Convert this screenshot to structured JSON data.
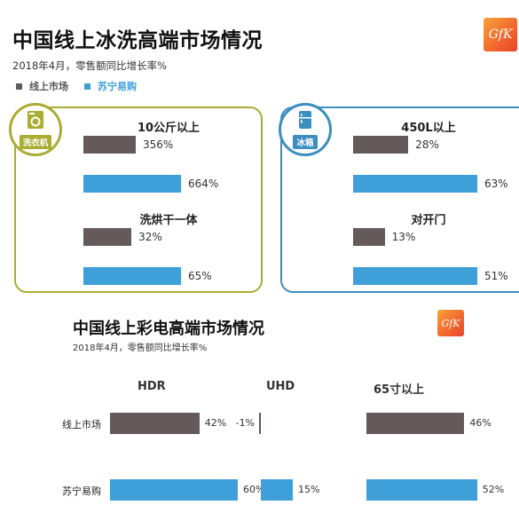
{
  "top": {
    "title": "中国线上冰洗高端市场情况",
    "subtitle": "2018年4月，零售额同比增长率%",
    "logo": "GfK",
    "legend": [
      {
        "label": "线上市场",
        "color": "#645a59"
      },
      {
        "label": "苏宁易购",
        "color": "#3fa0d9"
      }
    ]
  },
  "washer_panel": {
    "badge": "洗衣机",
    "accent": "#a9ad33",
    "groups": [
      {
        "label": "10公斤以上",
        "online": "356%",
        "suning": "664%"
      },
      {
        "label": "洗烘干一体",
        "online": "32%",
        "suning": "65%"
      }
    ]
  },
  "fridge_panel": {
    "badge": "冰箱",
    "accent": "#3b8fbf",
    "groups": [
      {
        "label": "450L以上",
        "online": "28%",
        "suning": "63%"
      },
      {
        "label": "对开门",
        "online": "13%",
        "suning": "51%"
      }
    ]
  },
  "bottom": {
    "title": "中国线上彩电高端市场情况",
    "subtitle": "2018年4月，零售额同比增长率%",
    "logo": "GfK",
    "row_labels": [
      "线上市场",
      "苏宁易购"
    ],
    "groups": [
      {
        "label": "HDR",
        "online": "42%",
        "suning": "60%"
      },
      {
        "label": "UHD",
        "online": "-1%",
        "suning": "15%"
      },
      {
        "label": "65寸以上",
        "online": "46%",
        "suning": "52%"
      }
    ]
  },
  "chart_data": [
    {
      "type": "bar",
      "title": "中国线上冰洗高端市场情况 — 洗衣机",
      "categories": [
        "10公斤以上",
        "洗烘干一体"
      ],
      "series": [
        {
          "name": "线上市场",
          "values": [
            356,
            32
          ]
        },
        {
          "name": "苏宁易购",
          "values": [
            664,
            65
          ]
        }
      ],
      "unit": "%"
    },
    {
      "type": "bar",
      "title": "中国线上冰洗高端市场情况 — 冰箱",
      "categories": [
        "450L以上",
        "对开门"
      ],
      "series": [
        {
          "name": "线上市场",
          "values": [
            28,
            13
          ]
        },
        {
          "name": "苏宁易购",
          "values": [
            63,
            51
          ]
        }
      ],
      "unit": "%"
    },
    {
      "type": "bar",
      "title": "中国线上彩电高端市场情况",
      "categories": [
        "HDR",
        "UHD",
        "65寸以上"
      ],
      "series": [
        {
          "name": "线上市场",
          "values": [
            42,
            -1,
            46
          ]
        },
        {
          "name": "苏宁易购",
          "values": [
            60,
            15,
            52
          ]
        }
      ],
      "unit": "%"
    }
  ]
}
